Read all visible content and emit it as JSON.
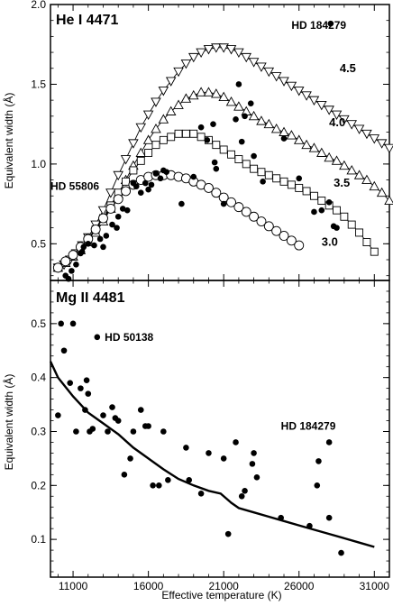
{
  "xaxis": {
    "label": "Effective temperature (K)",
    "range": [
      9500,
      32000
    ],
    "ticks": [
      11000,
      16000,
      21000,
      26000,
      31000
    ],
    "minor_step": 1000
  },
  "chart_data": [
    {
      "type": "scatter",
      "title": "He I 4471",
      "ylabel": "Equivalent width (Å)",
      "xlim": [
        9500,
        32000
      ],
      "ylim": [
        0.27,
        2.0
      ],
      "yticks": [
        0.5,
        1.0,
        1.5,
        2.0
      ],
      "ytick_labels": [
        "0.5",
        "1.0",
        "1.5",
        "2.0"
      ],
      "grid": false,
      "series": [
        {
          "kind": "model",
          "name": "4.5",
          "marker": "triangle-down",
          "x": [
            10000,
            10400,
            10800,
            11200,
            11600,
            12000,
            12500,
            13000,
            13500,
            14000,
            14500,
            15000,
            15500,
            16000,
            16500,
            17000,
            17500,
            18000,
            18500,
            19000,
            19500,
            20000,
            20500,
            21000,
            21500,
            22000,
            22500,
            23000,
            23500,
            24000,
            24500,
            25000,
            25500,
            26000,
            26500,
            27000,
            27500,
            28000,
            28500,
            29000,
            29500,
            30000,
            30500,
            31000,
            31500,
            32000
          ],
          "y": [
            0.35,
            0.37,
            0.4,
            0.44,
            0.49,
            0.54,
            0.62,
            0.71,
            0.82,
            0.93,
            1.03,
            1.13,
            1.23,
            1.31,
            1.39,
            1.46,
            1.52,
            1.58,
            1.63,
            1.67,
            1.7,
            1.72,
            1.73,
            1.73,
            1.72,
            1.7,
            1.67,
            1.64,
            1.61,
            1.58,
            1.55,
            1.52,
            1.49,
            1.46,
            1.43,
            1.4,
            1.37,
            1.34,
            1.31,
            1.28,
            1.25,
            1.22,
            1.19,
            1.16,
            1.13,
            1.1
          ]
        },
        {
          "kind": "model",
          "name": "4.0",
          "marker": "triangle-up",
          "x": [
            10000,
            10500,
            11000,
            11500,
            12000,
            12500,
            13000,
            13500,
            14000,
            14500,
            15000,
            15500,
            16000,
            16500,
            17000,
            17500,
            18000,
            18500,
            19000,
            19500,
            20000,
            20500,
            21000,
            21500,
            22000,
            22500,
            23000,
            23500,
            24000,
            24500,
            25000,
            25500,
            26000,
            26500,
            27000,
            27500,
            28000,
            28500,
            29000,
            29500,
            30000,
            30500,
            31000,
            31500,
            32000
          ],
          "y": [
            0.35,
            0.38,
            0.42,
            0.46,
            0.51,
            0.57,
            0.64,
            0.72,
            0.81,
            0.9,
            0.99,
            1.07,
            1.15,
            1.22,
            1.28,
            1.33,
            1.37,
            1.41,
            1.43,
            1.45,
            1.45,
            1.44,
            1.42,
            1.39,
            1.36,
            1.33,
            1.3,
            1.27,
            1.25,
            1.22,
            1.2,
            1.18,
            1.15,
            1.12,
            1.1,
            1.07,
            1.04,
            1.02,
            0.99,
            0.96,
            0.93,
            0.9,
            0.86,
            0.82,
            0.77
          ]
        },
        {
          "kind": "model",
          "name": "3.5",
          "marker": "square",
          "x": [
            10000,
            10500,
            11000,
            11500,
            12000,
            12500,
            13000,
            13500,
            14000,
            14500,
            15000,
            15500,
            16000,
            16500,
            17000,
            17500,
            18000,
            18500,
            19000,
            19500,
            20000,
            20500,
            21000,
            21500,
            22000,
            22500,
            23000,
            23500,
            24000,
            24500,
            25000,
            25500,
            26000,
            26500,
            27000,
            27500,
            28000,
            28500,
            29000,
            29500,
            30000,
            30500,
            31000
          ],
          "y": [
            0.35,
            0.38,
            0.42,
            0.47,
            0.52,
            0.59,
            0.66,
            0.74,
            0.82,
            0.89,
            0.96,
            1.02,
            1.07,
            1.12,
            1.15,
            1.17,
            1.19,
            1.19,
            1.19,
            1.17,
            1.15,
            1.12,
            1.09,
            1.06,
            1.03,
            1.0,
            0.97,
            0.95,
            0.93,
            0.91,
            0.89,
            0.87,
            0.85,
            0.83,
            0.8,
            0.77,
            0.74,
            0.71,
            0.67,
            0.62,
            0.57,
            0.51,
            0.45
          ]
        },
        {
          "kind": "model",
          "name": "3.0",
          "marker": "circle",
          "x": [
            10000,
            10500,
            11000,
            11500,
            12000,
            12500,
            13000,
            13500,
            14000,
            14500,
            15000,
            15500,
            16000,
            16500,
            17000,
            17500,
            18000,
            18500,
            19000,
            19500,
            20000,
            20500,
            21000,
            21500,
            22000,
            22500,
            23000,
            23500,
            24000,
            24500,
            25000,
            25500,
            26000
          ],
          "y": [
            0.35,
            0.39,
            0.43,
            0.48,
            0.53,
            0.59,
            0.66,
            0.72,
            0.78,
            0.83,
            0.87,
            0.9,
            0.92,
            0.93,
            0.93,
            0.93,
            0.92,
            0.91,
            0.89,
            0.87,
            0.85,
            0.82,
            0.79,
            0.76,
            0.73,
            0.7,
            0.67,
            0.64,
            0.61,
            0.58,
            0.55,
            0.52,
            0.49
          ]
        },
        {
          "kind": "observed",
          "marker": "filled-circle",
          "x": [
            10500,
            10700,
            10900,
            11200,
            11500,
            11700,
            11600,
            12000,
            12400,
            12800,
            13000,
            13200,
            13600,
            13900,
            14000,
            14300,
            14600,
            15000,
            15200,
            15500,
            15800,
            16000,
            16200,
            16500,
            16800,
            17000,
            17200,
            18200,
            19000,
            19500,
            19900,
            20300,
            20400,
            20500,
            21000,
            21800,
            22000,
            22200,
            22400,
            22800,
            23000,
            23600,
            25000,
            26000,
            27000,
            27500,
            28000,
            28300,
            28500,
            28100
          ],
          "y": [
            0.3,
            0.28,
            0.33,
            0.37,
            0.44,
            0.48,
            0.45,
            0.5,
            0.49,
            0.53,
            0.48,
            0.55,
            0.62,
            0.6,
            0.67,
            0.72,
            0.71,
            0.88,
            0.86,
            0.82,
            0.88,
            0.84,
            0.87,
            0.94,
            0.91,
            0.96,
            0.95,
            0.75,
            0.92,
            1.23,
            1.15,
            1.25,
            1.01,
            0.97,
            0.75,
            1.28,
            1.5,
            1.14,
            1.3,
            1.38,
            1.05,
            0.89,
            1.16,
            0.91,
            0.7,
            0.71,
            0.76,
            0.61,
            0.6,
            1.88
          ]
        }
      ],
      "annotations": [
        {
          "text": "HD 184279",
          "x": 25500,
          "y": 1.87
        },
        {
          "text": "HD 55806",
          "x": 9500,
          "y": 0.86
        },
        {
          "text": "4.5",
          "x": 28700,
          "y": 1.6
        },
        {
          "text": "4.0",
          "x": 28000,
          "y": 1.26
        },
        {
          "text": "3.5",
          "x": 28300,
          "y": 0.88
        },
        {
          "text": "3.0",
          "x": 27500,
          "y": 0.51
        }
      ]
    },
    {
      "type": "scatter",
      "title": "Mg II 4481",
      "ylabel": "Equivalent width (Å)",
      "xlim": [
        9500,
        32000
      ],
      "ylim": [
        0.03,
        0.58
      ],
      "yticks": [
        0.1,
        0.2,
        0.3,
        0.4,
        0.5
      ],
      "ytick_labels": [
        "0.1",
        "0.2",
        "0.3",
        "0.4",
        "0.5"
      ],
      "grid": false,
      "series": [
        {
          "kind": "model",
          "marker": "none",
          "x": [
            9500,
            10000,
            11000,
            12000,
            13000,
            14000,
            15000,
            16000,
            17000,
            18000,
            19000,
            20000,
            20800,
            21500,
            22000,
            23000,
            24000,
            25000,
            26000,
            27000,
            28000,
            29000,
            30000,
            31000
          ],
          "y": [
            0.43,
            0.4,
            0.365,
            0.335,
            0.315,
            0.295,
            0.27,
            0.25,
            0.23,
            0.212,
            0.2,
            0.19,
            0.185,
            0.168,
            0.158,
            0.15,
            0.142,
            0.134,
            0.126,
            0.118,
            0.11,
            0.102,
            0.094,
            0.086
          ]
        },
        {
          "kind": "observed",
          "marker": "filled-circle",
          "x": [
            10000,
            10200,
            10400,
            10800,
            11000,
            11200,
            11500,
            11800,
            11900,
            12000,
            12100,
            12300,
            12600,
            13000,
            13300,
            13600,
            13800,
            14000,
            14400,
            14800,
            15000,
            15500,
            15800,
            16000,
            16300,
            16700,
            17000,
            17300,
            18500,
            18700,
            19500,
            20000,
            21000,
            21300,
            21800,
            22200,
            22400,
            22900,
            23000,
            23200,
            24800,
            26700,
            27200,
            27300,
            28000,
            28000,
            28800
          ],
          "y": [
            0.33,
            0.5,
            0.45,
            0.39,
            0.5,
            0.3,
            0.38,
            0.34,
            0.395,
            0.37,
            0.3,
            0.305,
            0.475,
            0.33,
            0.3,
            0.345,
            0.325,
            0.32,
            0.22,
            0.25,
            0.3,
            0.34,
            0.31,
            0.31,
            0.2,
            0.2,
            0.3,
            0.21,
            0.27,
            0.21,
            0.185,
            0.26,
            0.25,
            0.11,
            0.28,
            0.18,
            0.19,
            0.24,
            0.26,
            0.215,
            0.14,
            0.125,
            0.2,
            0.245,
            0.28,
            0.14,
            0.075
          ]
        }
      ],
      "annotations": [
        {
          "text": "HD 50138",
          "x": 13100,
          "y": 0.475
        },
        {
          "text": "HD 184279",
          "x": 24800,
          "y": 0.31
        }
      ]
    }
  ]
}
